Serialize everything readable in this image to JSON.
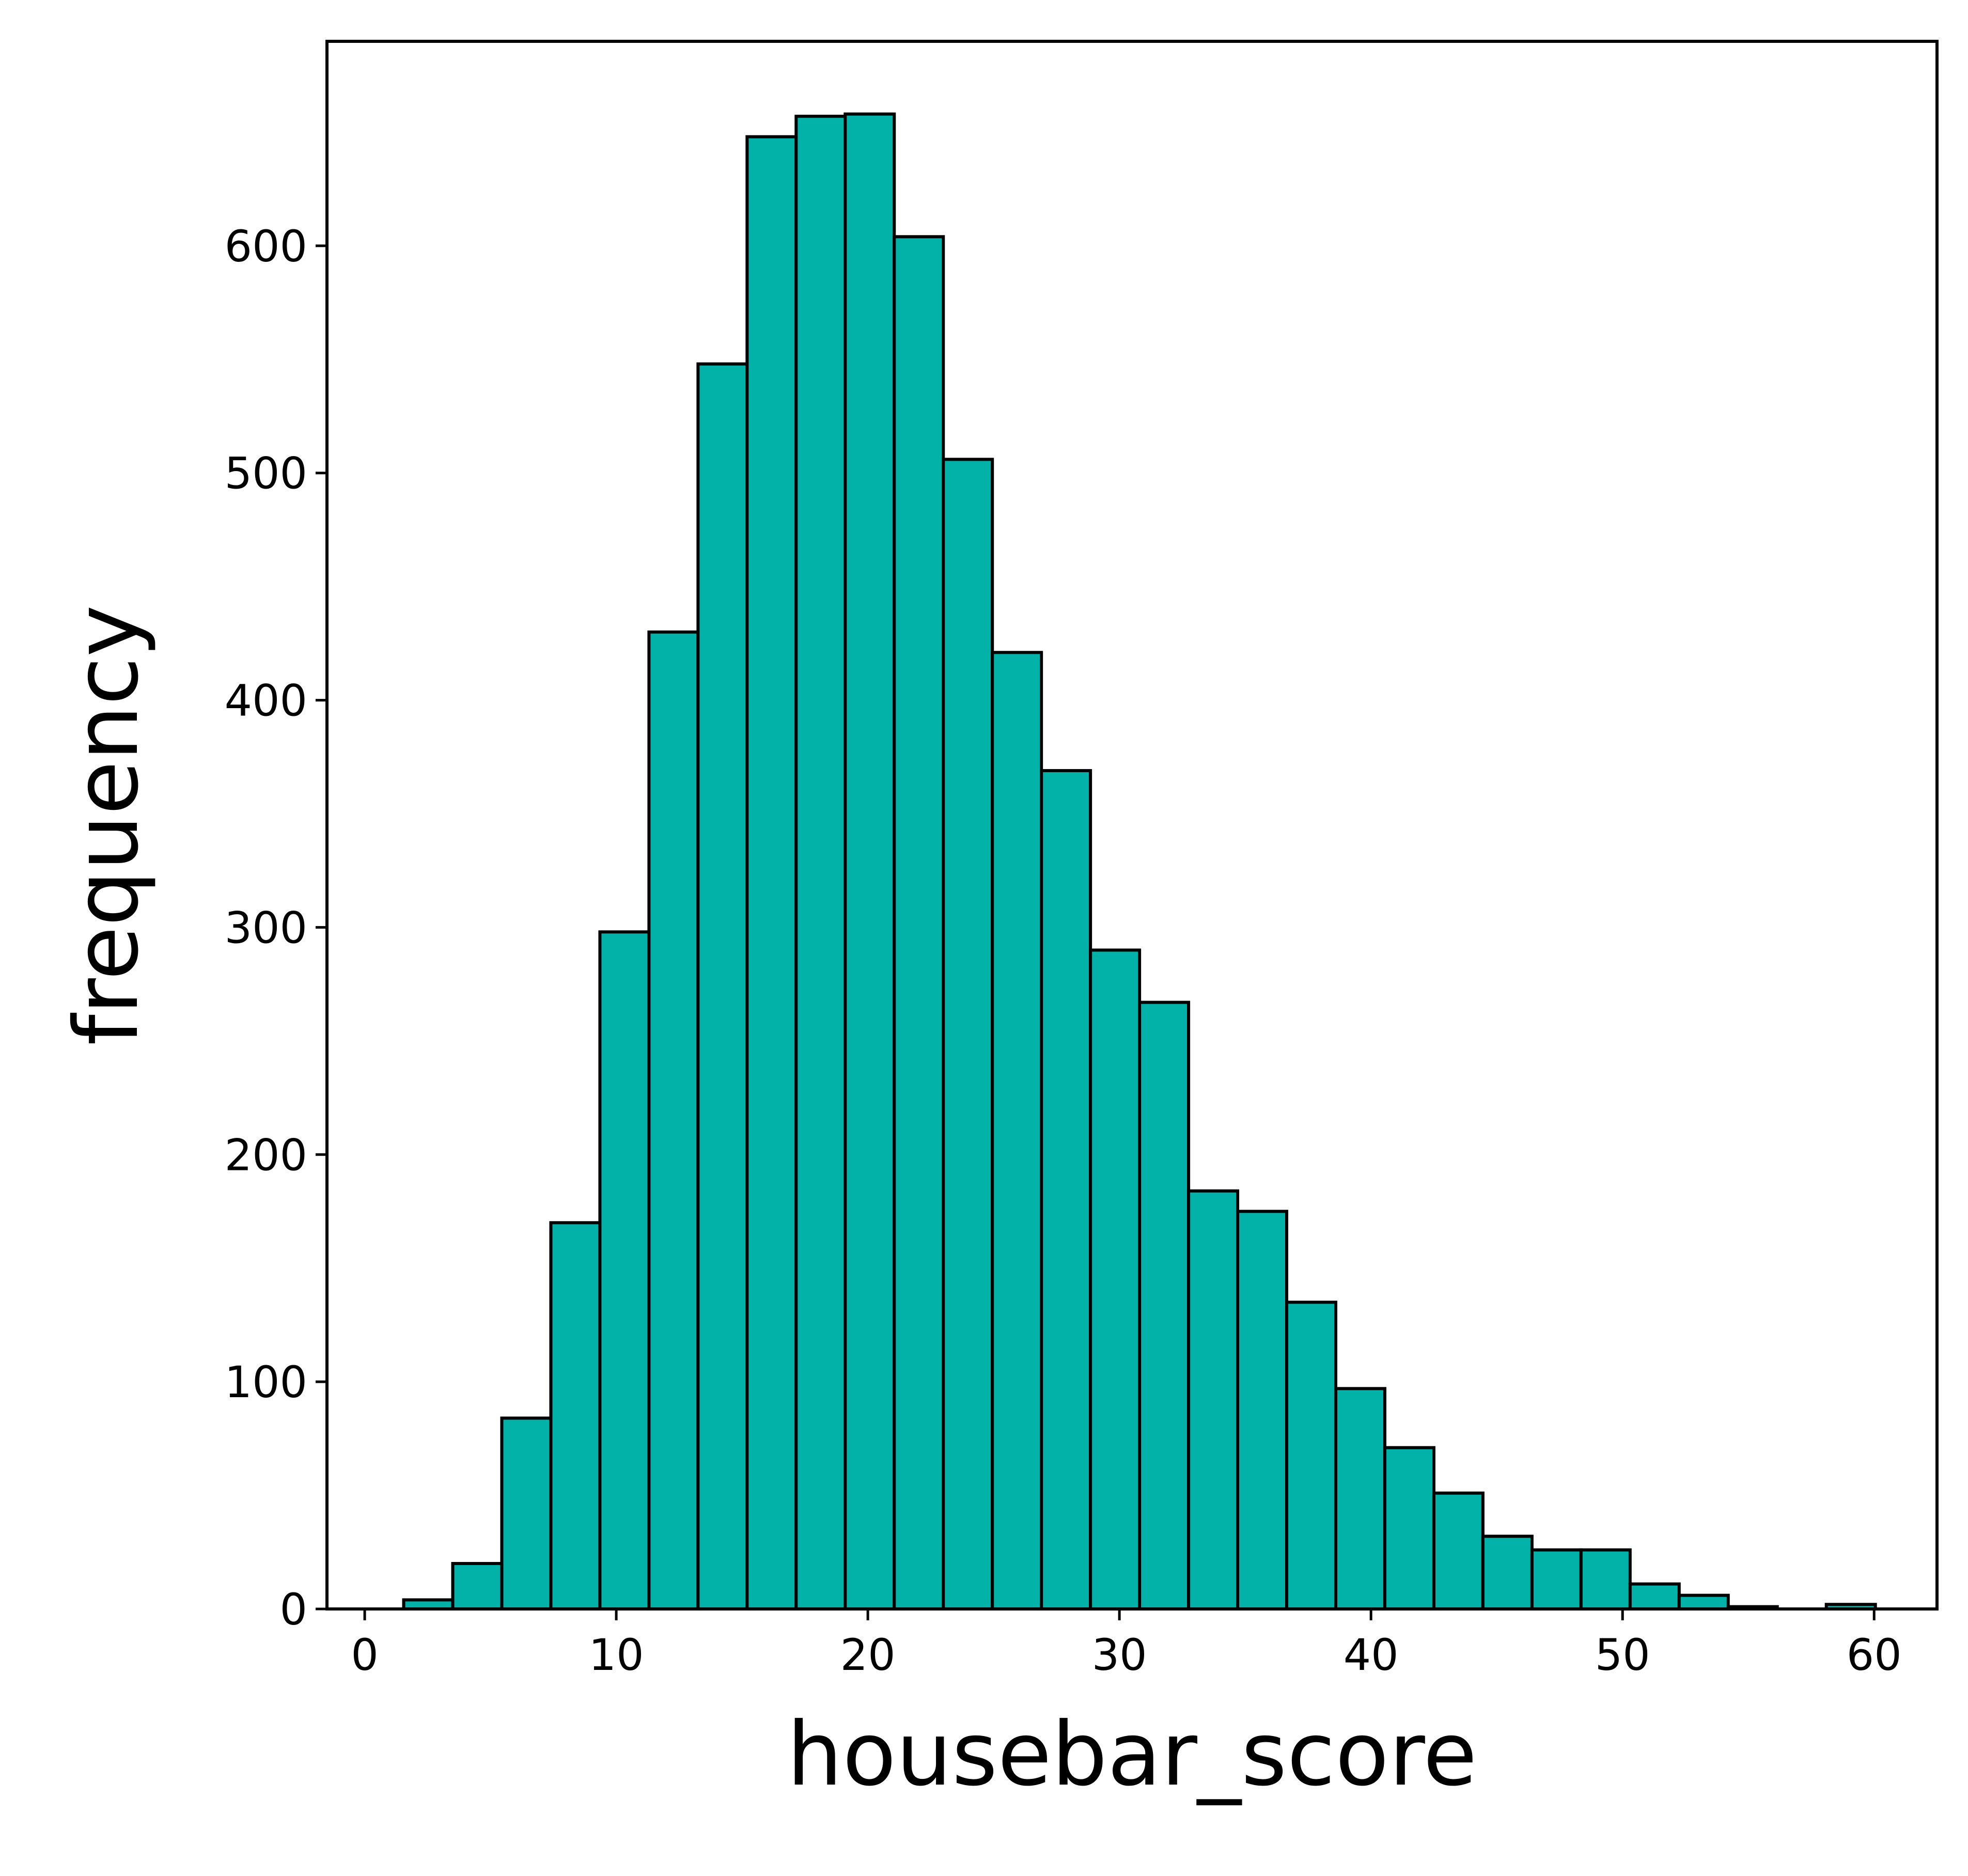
{
  "chart_data": {
    "type": "bar",
    "title": "",
    "xlabel": "housebar_score",
    "ylabel": "frequency",
    "xlim": [
      -1.5,
      62.5
    ],
    "ylim": [
      0,
      690
    ],
    "grid": false,
    "legend": "none",
    "bar_color": "#02B2A8",
    "edge_color": "#000000",
    "x_ticks": [
      0,
      10,
      20,
      30,
      40,
      50,
      60
    ],
    "x_tick_labels": [
      "0",
      "10",
      "20",
      "30",
      "40",
      "50",
      "60"
    ],
    "y_ticks": [
      0,
      100,
      200,
      300,
      400,
      500,
      600
    ],
    "y_tick_labels": [
      "0",
      "100",
      "200",
      "300",
      "400",
      "500",
      "600"
    ],
    "bin_edges": [
      -0.4,
      1.55,
      3.5,
      5.45,
      7.4,
      9.35,
      11.3,
      13.25,
      15.2,
      17.15,
      19.1,
      21.05,
      23.0,
      24.95,
      26.9,
      28.85,
      30.8,
      32.75,
      34.7,
      36.65,
      38.6,
      40.55,
      42.5,
      44.45,
      46.4,
      48.35,
      50.3,
      52.25,
      54.2,
      56.15,
      58.1,
      60.05
    ],
    "values": [
      0,
      4,
      20,
      84,
      170,
      298,
      430,
      548,
      648,
      657,
      658,
      604,
      506,
      421,
      369,
      290,
      267,
      184,
      175,
      135,
      97,
      71,
      51,
      32,
      26,
      26,
      11,
      6,
      1,
      0,
      2
    ]
  }
}
